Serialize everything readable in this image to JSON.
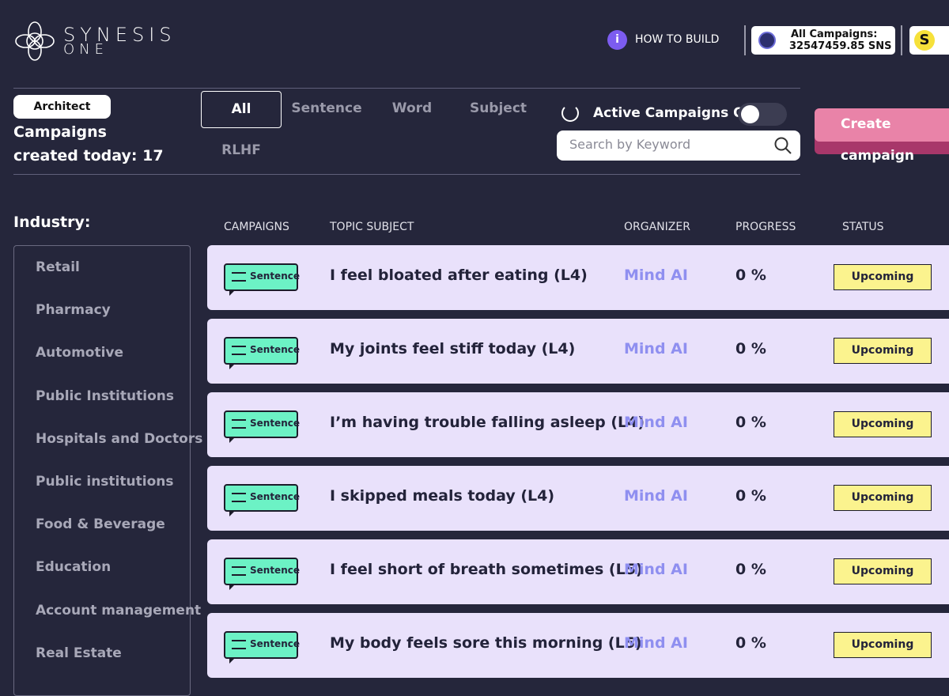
{
  "header": {
    "logo_line1": "SYNESIS",
    "logo_line2": "ONE",
    "info_icon": "i",
    "how_to_build": "HOW TO BUILD",
    "campaigns_label": "All Campaigns:",
    "campaigns_value": "32547459.85 SNS",
    "token_icon": "S"
  },
  "profile": {
    "role": "Architect",
    "created_label": "Campaigns created today:",
    "created_count": 17
  },
  "tabs": [
    "All",
    "Sentence",
    "Word",
    "Subject",
    "RLHF"
  ],
  "filter": {
    "label": "Active Campaigns Only"
  },
  "search": {
    "placeholder": "Search by Keyword"
  },
  "create_button": "Create campaign",
  "industry": {
    "title": "Industry:",
    "items": [
      "Retail",
      "Pharmacy",
      "Automotive",
      "Public Institutions",
      "Hospitals and Doctors",
      "Public institutions",
      "Food & Beverage",
      "Education",
      "Account management",
      "Real Estate"
    ]
  },
  "table": {
    "columns": [
      "CAMPAIGNS",
      "TOPIC SUBJECT",
      "ORGANIZER",
      "PROGRESS",
      "STATUS"
    ],
    "rows": [
      {
        "type": "Sentence",
        "topic": "I feel bloated after eating (L4)",
        "organizer": "Mind AI",
        "progress": "0 %",
        "status": "Upcoming"
      },
      {
        "type": "Sentence",
        "topic": "My joints feel stiff today (L4)",
        "organizer": "Mind AI",
        "progress": "0 %",
        "status": "Upcoming"
      },
      {
        "type": "Sentence",
        "topic": "I’m having trouble falling asleep (L4)",
        "organizer": "Mind AI",
        "progress": "0 %",
        "status": "Upcoming"
      },
      {
        "type": "Sentence",
        "topic": "I skipped meals today (L4)",
        "organizer": "Mind AI",
        "progress": "0 %",
        "status": "Upcoming"
      },
      {
        "type": "Sentence",
        "topic": "I feel short of breath sometimes (L5)",
        "organizer": "Mind AI",
        "progress": "0 %",
        "status": "Upcoming"
      },
      {
        "type": "Sentence",
        "topic": "My body feels sore this morning (L5)",
        "organizer": "Mind AI",
        "progress": "0 %",
        "status": "Upcoming"
      }
    ]
  }
}
